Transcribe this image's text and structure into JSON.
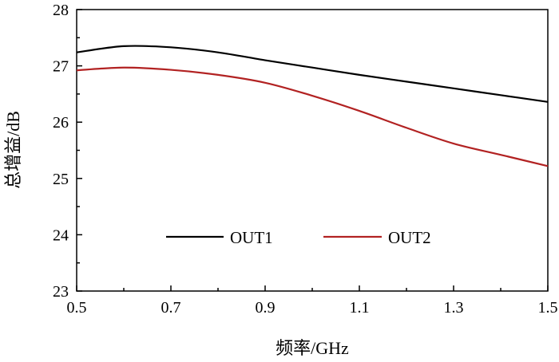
{
  "chart_data": {
    "type": "line",
    "title": "",
    "xlabel": "频率/GHz",
    "ylabel": "总增益/dB",
    "xlim": [
      0.5,
      1.5
    ],
    "ylim": [
      23,
      28
    ],
    "xticks": [
      "0.5",
      "0.7",
      "0.9",
      "1.1",
      "1.3",
      "1.5"
    ],
    "yticks": [
      "23",
      "24",
      "25",
      "26",
      "27",
      "28"
    ],
    "grid": false,
    "legend_position": "bottom-center",
    "x": [
      0.5,
      0.6,
      0.7,
      0.8,
      0.9,
      1.0,
      1.1,
      1.2,
      1.3,
      1.4,
      1.5
    ],
    "series": [
      {
        "name": "OUT1",
        "color": "#000000",
        "values": [
          27.24,
          27.35,
          27.33,
          27.24,
          27.1,
          26.97,
          26.84,
          26.72,
          26.6,
          26.48,
          26.36
        ]
      },
      {
        "name": "OUT2",
        "color": "#b22222",
        "values": [
          26.92,
          26.97,
          26.93,
          26.84,
          26.7,
          26.47,
          26.2,
          25.9,
          25.62,
          25.42,
          25.22
        ]
      }
    ]
  }
}
